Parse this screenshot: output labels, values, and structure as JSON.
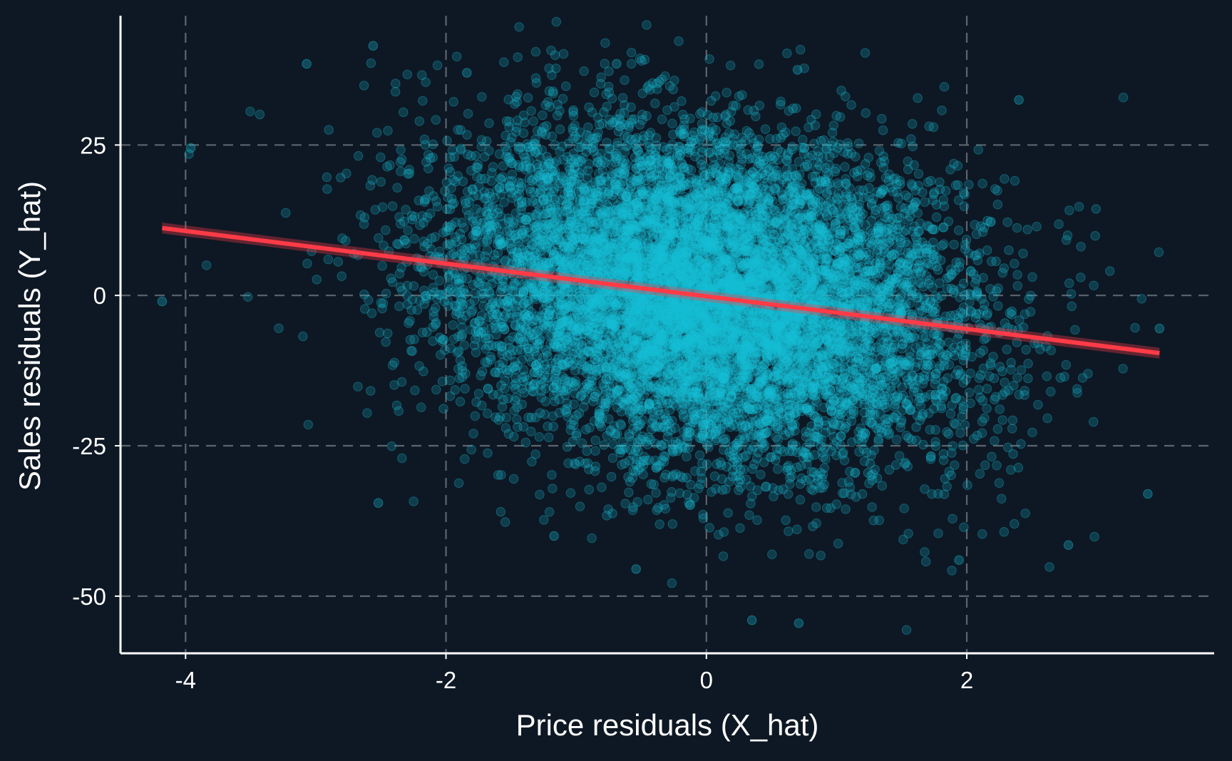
{
  "colors": {
    "background": "#0e1824",
    "points": "#17c0d8",
    "fit_line": "#ff3b47",
    "grid": "#5c646d",
    "axis": "#ffffff",
    "text": "#ffffff"
  },
  "chart_data": {
    "type": "scatter",
    "title": "",
    "xlabel": "Price residuals (X_hat)",
    "ylabel": "Sales residuals (Y_hat)",
    "xlim": [
      -4.5,
      3.9
    ],
    "ylim": [
      -59.5,
      46.5
    ],
    "x_ticks": [
      -4,
      -2,
      0,
      2
    ],
    "y_ticks": [
      -50,
      -25,
      0,
      25
    ],
    "x_tick_labels": [
      "-4",
      "-2",
      "0",
      "2"
    ],
    "y_tick_labels": [
      "-50",
      "-25",
      "0",
      "25"
    ],
    "grid": "dashed",
    "legend": "none",
    "point_count": 10000,
    "point_distribution": {
      "x_mean": 0,
      "x_std": 1.0,
      "y_mean": 0,
      "y_std": 13.5,
      "slope": -2.75
    },
    "notable_points": [
      {
        "x": -2.56,
        "y": 41.5
      },
      {
        "x": -3.07,
        "y": 38.5
      },
      {
        "x": -4.18,
        "y": -1.0
      },
      {
        "x": -3.96,
        "y": 24.5
      },
      {
        "x": -2.52,
        "y": -34.5
      },
      {
        "x": -1.17,
        "y": -40.0
      },
      {
        "x": -0.54,
        "y": -45.5
      },
      {
        "x": 0.35,
        "y": -54.0
      },
      {
        "x": 0.71,
        "y": -54.5
      },
      {
        "x": 1.94,
        "y": -44.0
      },
      {
        "x": 2.78,
        "y": -41.5
      },
      {
        "x": 3.39,
        "y": -33.0
      },
      {
        "x": 3.48,
        "y": -5.5
      },
      {
        "x": 2.4,
        "y": 32.5
      },
      {
        "x": 0.7,
        "y": 37.5
      },
      {
        "x": -0.69,
        "y": 38.5
      },
      {
        "x": -1.84,
        "y": 37.0
      }
    ],
    "series": [
      {
        "type": "line",
        "x": [
          -4.18,
          3.48
        ],
        "y": [
          11.2,
          -9.6
        ]
      }
    ]
  }
}
